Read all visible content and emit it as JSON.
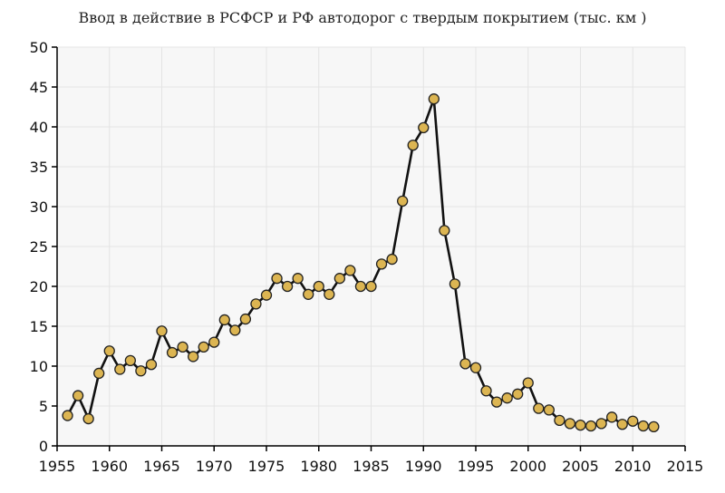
{
  "chart_data": {
    "type": "line",
    "title": "Ввод в действие в РСФСР и РФ автодорог с твердым покрытием (тыс. км )",
    "xlabel": "",
    "ylabel": "",
    "xlim": [
      1955,
      2015
    ],
    "ylim": [
      0,
      50
    ],
    "x_ticks": [
      1955,
      1960,
      1965,
      1970,
      1975,
      1980,
      1985,
      1990,
      1995,
      2000,
      2005,
      2010,
      2015
    ],
    "y_ticks": [
      0,
      5,
      10,
      15,
      20,
      25,
      30,
      35,
      40,
      45,
      50
    ],
    "grid": true,
    "legend": "none",
    "colors": {
      "line": "#111111",
      "marker_fill": "#dcb552",
      "marker_stroke": "#222222",
      "grid": "#e4e4e4",
      "plot_bg": "#f7f7f7"
    },
    "series": [
      {
        "x": [
          1956,
          1957,
          1958,
          1959,
          1960,
          1961,
          1962,
          1963,
          1964,
          1965,
          1966,
          1967,
          1968,
          1969,
          1970,
          1971,
          1972,
          1973,
          1974,
          1975,
          1976,
          1977,
          1978,
          1979,
          1980,
          1981,
          1982,
          1983,
          1984,
          1985,
          1986,
          1987,
          1988,
          1989,
          1990,
          1991,
          1992,
          1993,
          1994,
          1995,
          1996,
          1997,
          1998,
          1999,
          2000,
          2001,
          2002,
          2003,
          2004,
          2005,
          2006,
          2007,
          2008,
          2009,
          2010,
          2011,
          2012
        ],
        "values": [
          3.8,
          6.3,
          3.4,
          9.1,
          11.9,
          9.6,
          10.7,
          9.4,
          10.2,
          14.4,
          11.7,
          12.4,
          11.2,
          12.4,
          13.0,
          15.8,
          14.5,
          15.9,
          17.8,
          18.9,
          21.0,
          20.0,
          21.0,
          19.0,
          20.0,
          19.0,
          21.0,
          22.0,
          20.0,
          20.0,
          22.8,
          23.4,
          30.7,
          37.7,
          39.9,
          43.5,
          27.0,
          20.3,
          10.3,
          9.8,
          6.9,
          5.5,
          6.0,
          6.5,
          7.9,
          4.7,
          4.5,
          3.2,
          2.8,
          2.6,
          2.5,
          2.8,
          3.6,
          2.7,
          3.1,
          2.5,
          2.4
        ]
      }
    ]
  }
}
